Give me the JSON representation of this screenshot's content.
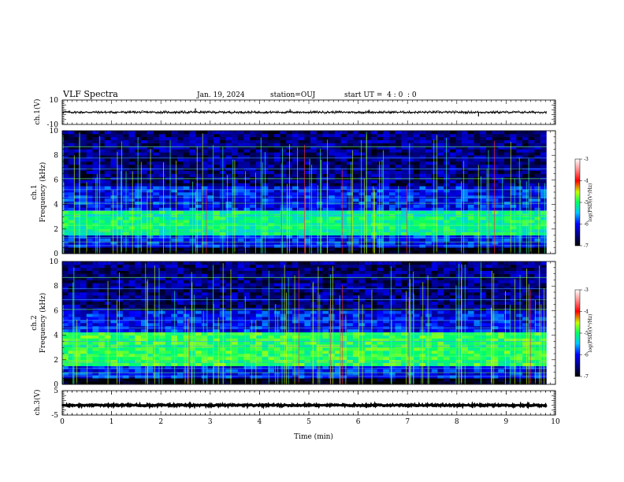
{
  "header": {
    "title": "VLF Spectra",
    "date": "Jan. 19, 2024",
    "station": "station=OUJ",
    "start": "start UT =  4 : 0  : 0"
  },
  "chart_data": [
    {
      "type": "line",
      "panel": "ch.1 waveform",
      "ylabel": "ch.1(V)",
      "ylim": [
        -10,
        10
      ],
      "ytick_labels": [
        "10",
        "-10"
      ],
      "baseline": 0,
      "spikes": [
        {
          "x": 2.7,
          "y": 3.2
        },
        {
          "x": 4.62,
          "y": 2.5
        },
        {
          "x": 6.22,
          "y": 2.0
        },
        {
          "x": 8.44,
          "y": -3.4
        }
      ]
    },
    {
      "type": "heatmap",
      "panel": "ch.1 spectrogram",
      "ylabel_line1": "ch.1",
      "ylabel_line2": "Frequency (kHz)",
      "ylim": [
        0,
        10
      ],
      "ytick_labels": [
        "0",
        "2",
        "4",
        "6",
        "8",
        "10"
      ],
      "bands": [
        {
          "f0": 0.0,
          "f1": 0.5,
          "level": -7
        },
        {
          "f0": 0.5,
          "f1": 1.5,
          "level": -6.2
        },
        {
          "f0": 1.5,
          "f1": 3.4,
          "level": -5.2
        },
        {
          "f0": 3.4,
          "f1": 5.5,
          "level": -6.2
        },
        {
          "f0": 5.5,
          "f1": 10.0,
          "level": -6.6
        }
      ],
      "colorbar": {
        "label": "log(PSD)(V²/Hz)",
        "tick_labels": [
          "-3",
          "-4",
          "-5",
          "-6",
          "-7"
        ],
        "range": [
          -7,
          -3
        ]
      }
    },
    {
      "type": "heatmap",
      "panel": "ch.2 spectrogram",
      "ylabel_line1": "ch.2",
      "ylabel_line2": "Frequency (kHz)",
      "ylim": [
        0,
        10
      ],
      "ytick_labels": [
        "0",
        "2",
        "4",
        "6",
        "8",
        "10"
      ],
      "bands": [
        {
          "f0": 0.0,
          "f1": 0.5,
          "level": -7
        },
        {
          "f0": 0.5,
          "f1": 1.5,
          "level": -6.2
        },
        {
          "f0": 1.5,
          "f1": 4.2,
          "level": -5.0
        },
        {
          "f0": 4.2,
          "f1": 6.0,
          "level": -6.2
        },
        {
          "f0": 6.0,
          "f1": 10.0,
          "level": -6.6
        }
      ],
      "colorbar": {
        "label": "log(PSD)(V²/Hz)",
        "tick_labels": [
          "-3",
          "-4",
          "-5",
          "-6",
          "-7"
        ],
        "range": [
          -7,
          -3
        ]
      }
    },
    {
      "type": "line",
      "panel": "ch.3 waveform",
      "ylabel": "ch.3(V)",
      "ylim": [
        -5,
        5
      ],
      "ytick_labels": [
        "5",
        "-5"
      ],
      "baseline": -1.0
    }
  ],
  "xaxis": {
    "label": "Time (min)",
    "range": [
      0,
      10
    ],
    "tick_labels": [
      "0",
      "1",
      "2",
      "3",
      "4",
      "5",
      "6",
      "7",
      "8",
      "9",
      "10"
    ]
  }
}
